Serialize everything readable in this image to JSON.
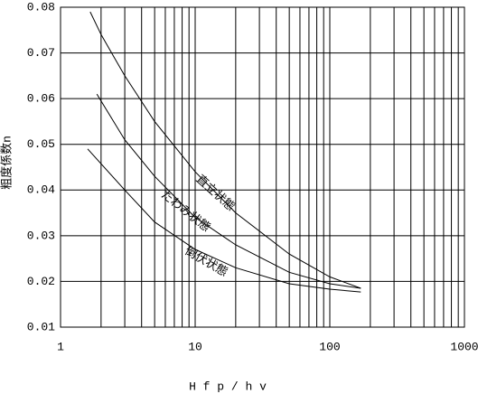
{
  "chart_data": {
    "type": "line",
    "x_label": "H f p / h v",
    "y_label": "粗度係数n",
    "log_x": true,
    "grid": true,
    "xlim": [
      1,
      1000
    ],
    "xticks": [
      1,
      10,
      100,
      1000
    ],
    "x_minor_ticks": [
      2,
      3,
      4,
      5,
      6,
      7,
      8,
      9,
      20,
      30,
      40,
      50,
      60,
      70,
      80,
      90,
      200,
      300,
      400,
      500,
      600,
      700,
      800,
      900
    ],
    "ylim": [
      0.01,
      0.08
    ],
    "yticks": [
      0.01,
      0.02,
      0.03,
      0.04,
      0.05,
      0.06,
      0.07,
      0.08
    ],
    "series": [
      {
        "name": "直立状態",
        "color": "#000000",
        "x": [
          1.66,
          2,
          3,
          5,
          10,
          20,
          50,
          100,
          170
        ],
        "values": [
          0.079,
          0.074,
          0.065,
          0.055,
          0.044,
          0.035,
          0.026,
          0.021,
          0.0185
        ]
      },
      {
        "name": "たわみ状態",
        "color": "#000000",
        "x": [
          1.86,
          3,
          5,
          10,
          20,
          50,
          100,
          170
        ],
        "values": [
          0.061,
          0.051,
          0.043,
          0.034,
          0.028,
          0.022,
          0.0195,
          0.0185
        ]
      },
      {
        "name": "倒伏状態",
        "color": "#000000",
        "x": [
          1.59,
          3,
          5,
          10,
          20,
          50,
          100,
          170
        ],
        "values": [
          0.049,
          0.04,
          0.033,
          0.027,
          0.023,
          0.0195,
          0.0183,
          0.0177
        ]
      }
    ]
  }
}
